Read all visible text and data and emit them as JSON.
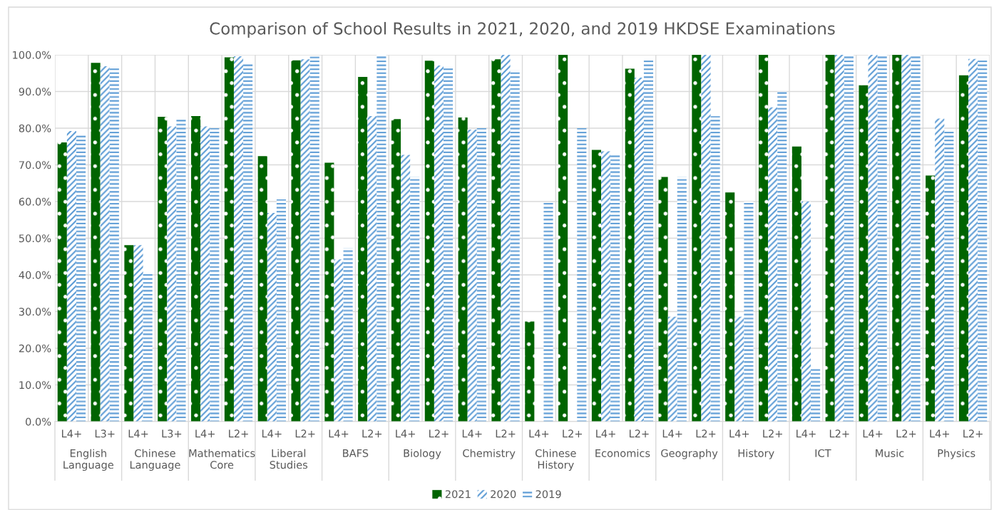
{
  "chart_data": {
    "type": "bar",
    "title": "Comparison of School Results in 2021, 2020, and 2019 HKDSE Examinations",
    "categories": [
      "L4+",
      "L3+",
      "L4+",
      "L3+",
      "L4+",
      "L2+",
      "L4+",
      "L2+",
      "L4+",
      "L2+",
      "L4+",
      "L2+",
      "L4+",
      "L2+",
      "L4+",
      "L2+",
      "L4+",
      "L2+",
      "L4+",
      "L2+",
      "L4+",
      "L2+",
      "L4+",
      "L2+",
      "L4+",
      "L2+",
      "L4+",
      "L2+"
    ],
    "annotations": [
      "English\nLanguage",
      "Chinese\nLanguage",
      "Mathematics\nCore",
      "Liberal\nStudies",
      "BAFS",
      "Biology",
      "Chemistry",
      "Chinese\nHistory",
      "Economics",
      "Geography",
      "History",
      "ICT",
      "Music",
      "Physics"
    ],
    "series": [
      {
        "name": "2021",
        "color": "#006400",
        "values": [
          76.1,
          97.8,
          48.1,
          83.1,
          83.3,
          99.3,
          72.4,
          98.5,
          70.6,
          94.0,
          82.5,
          98.4,
          82.9,
          98.8,
          27.3,
          100,
          74.1,
          96.2,
          66.7,
          100,
          62.5,
          100,
          75,
          100,
          91.7,
          100,
          67.1,
          94.4
        ]
      },
      {
        "name": "2020",
        "color": "#5b9bd5",
        "values": [
          79.2,
          96.9,
          48.1,
          80.5,
          80.5,
          99.6,
          56.9,
          98.8,
          44.2,
          83.3,
          72.7,
          97.1,
          79.6,
          100,
          null,
          null,
          73.7,
          93.8,
          28.6,
          100,
          28.6,
          85.7,
          60,
          100,
          100,
          100,
          82.6,
          98.9
        ]
      },
      {
        "name": "2019",
        "color": "#5b9bd5",
        "values": [
          78,
          96.8,
          40.3,
          82.7,
          80,
          97.6,
          60.6,
          99.5,
          47.3,
          100,
          66.7,
          96.8,
          80,
          95.8,
          59.8,
          80,
          72.6,
          98.6,
          66.7,
          83.3,
          60,
          90,
          14.3,
          100,
          100,
          100,
          79.2,
          98.6
        ]
      }
    ],
    "ylim": [
      0,
      100
    ],
    "yticks": [
      {
        "value": 0,
        "label": "0.0%"
      },
      {
        "value": 10,
        "label": "10.0%"
      },
      {
        "value": 20,
        "label": "20.0%"
      },
      {
        "value": 30,
        "label": "30.0%"
      },
      {
        "value": 40,
        "label": "40.0%"
      },
      {
        "value": 50,
        "label": "50.0%"
      },
      {
        "value": 60,
        "label": "60.0%"
      },
      {
        "value": 70,
        "label": "70.0%"
      },
      {
        "value": 80,
        "label": "80.0%"
      },
      {
        "value": 90,
        "label": "90.0%"
      },
      {
        "value": 100,
        "label": "100.0%"
      }
    ],
    "grid": true,
    "legend": "bottom"
  }
}
